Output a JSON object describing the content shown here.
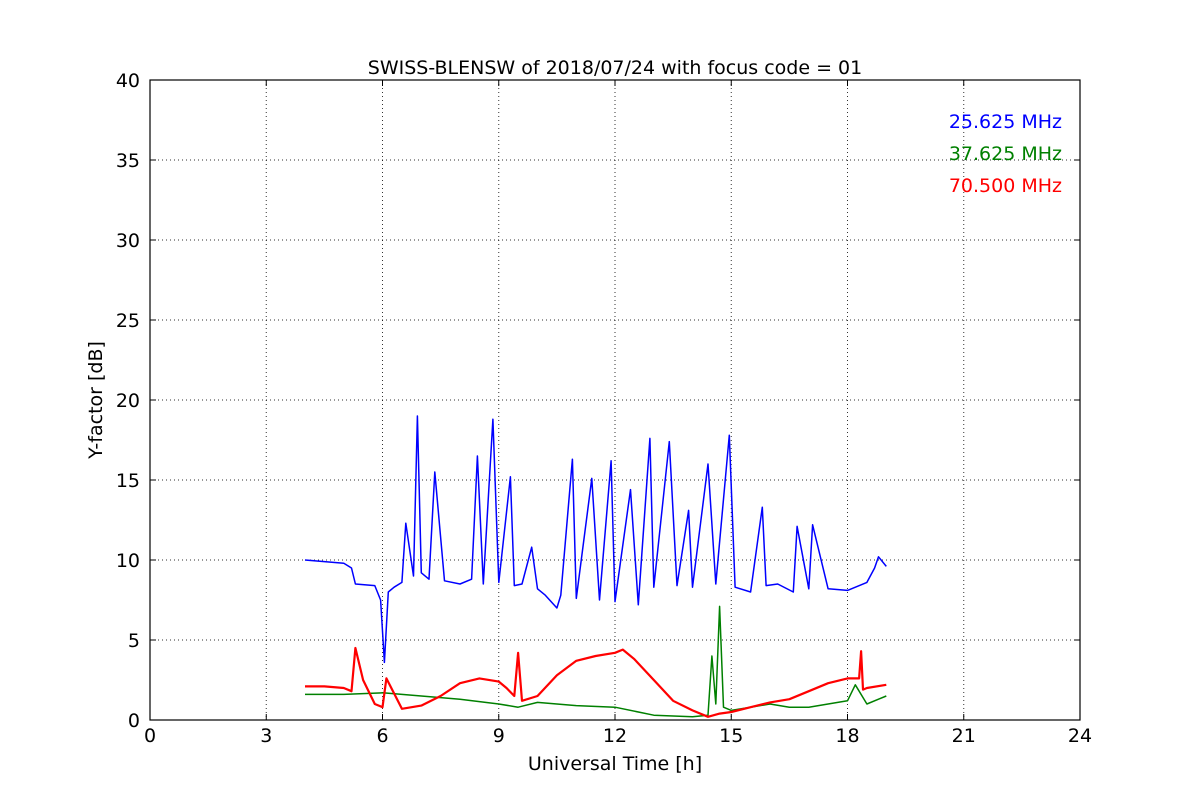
{
  "chart_data": {
    "type": "line",
    "title": "SWISS-BLENSW of 2018/07/24 with focus code = 01",
    "xlabel": "Universal Time [h]",
    "ylabel": "Y-factor [dB]",
    "xlim": [
      0,
      24
    ],
    "ylim": [
      0,
      40
    ],
    "xticks": [
      "0",
      "3",
      "6",
      "9",
      "12",
      "15",
      "18",
      "21",
      "24"
    ],
    "yticks": [
      "0",
      "5",
      "10",
      "15",
      "20",
      "25",
      "30",
      "35",
      "40"
    ],
    "grid": true,
    "legend_position": "top-right",
    "series": [
      {
        "name": "25.625 MHz",
        "color": "#0000ff",
        "x": [
          4.0,
          4.5,
          5.0,
          5.2,
          5.3,
          5.8,
          5.95,
          6.05,
          6.15,
          6.3,
          6.5,
          6.6,
          6.8,
          6.9,
          7.0,
          7.2,
          7.35,
          7.6,
          8.0,
          8.3,
          8.45,
          8.6,
          8.85,
          9.0,
          9.3,
          9.4,
          9.6,
          9.85,
          10.0,
          10.2,
          10.5,
          10.6,
          10.9,
          11.0,
          11.4,
          11.6,
          11.9,
          12.0,
          12.4,
          12.6,
          12.9,
          13.0,
          13.4,
          13.6,
          13.9,
          14.0,
          14.4,
          14.6,
          14.95,
          15.1,
          15.5,
          15.8,
          15.9,
          16.2,
          16.6,
          16.7,
          17.0,
          17.1,
          17.5,
          18.0,
          18.5,
          18.7,
          18.8,
          19.0
        ],
        "y": [
          10.0,
          9.9,
          9.8,
          9.5,
          8.5,
          8.4,
          7.5,
          3.6,
          8.0,
          8.3,
          8.6,
          12.3,
          9.0,
          19.0,
          9.2,
          8.8,
          15.5,
          8.7,
          8.5,
          8.8,
          16.5,
          8.5,
          18.8,
          8.6,
          15.2,
          8.4,
          8.5,
          10.8,
          8.2,
          7.8,
          7.0,
          7.8,
          16.3,
          7.6,
          15.1,
          7.5,
          16.2,
          7.4,
          14.4,
          7.2,
          17.6,
          8.3,
          17.4,
          8.4,
          13.1,
          8.3,
          16.0,
          8.5,
          17.8,
          8.3,
          8.0,
          13.3,
          8.4,
          8.5,
          8.0,
          12.1,
          8.2,
          12.2,
          8.2,
          8.1,
          8.6,
          9.5,
          10.2,
          9.6
        ]
      },
      {
        "name": "37.625 MHz",
        "color": "#008000",
        "x": [
          4.0,
          5.0,
          6.0,
          7.0,
          8.0,
          9.0,
          9.5,
          10.0,
          11.0,
          12.0,
          13.0,
          14.0,
          14.4,
          14.5,
          14.6,
          14.7,
          14.8,
          15.0,
          15.5,
          16.0,
          16.5,
          17.0,
          17.5,
          18.0,
          18.2,
          18.5,
          18.8,
          19.0
        ],
        "y": [
          1.6,
          1.6,
          1.7,
          1.5,
          1.3,
          1.0,
          0.8,
          1.1,
          0.9,
          0.8,
          0.3,
          0.2,
          0.3,
          4.0,
          1.0,
          7.1,
          0.8,
          0.6,
          0.8,
          1.0,
          0.8,
          0.8,
          1.0,
          1.2,
          2.2,
          1.0,
          1.3,
          1.5
        ]
      },
      {
        "name": "70.500 MHz",
        "color": "#ff0000",
        "x": [
          4.0,
          4.5,
          5.0,
          5.2,
          5.3,
          5.5,
          5.8,
          6.0,
          6.1,
          6.5,
          7.0,
          7.5,
          8.0,
          8.5,
          9.0,
          9.2,
          9.4,
          9.5,
          9.6,
          10.0,
          10.5,
          11.0,
          11.5,
          12.0,
          12.2,
          12.5,
          13.0,
          13.5,
          14.0,
          14.4,
          14.7,
          15.0,
          15.5,
          16.0,
          16.5,
          17.0,
          17.5,
          18.0,
          18.3,
          18.35,
          18.4,
          18.5,
          19.0
        ],
        "y": [
          2.1,
          2.1,
          2.0,
          1.8,
          4.5,
          2.5,
          1.0,
          0.8,
          2.6,
          0.7,
          0.9,
          1.5,
          2.3,
          2.6,
          2.4,
          2.0,
          1.5,
          4.2,
          1.2,
          1.5,
          2.8,
          3.7,
          4.0,
          4.2,
          4.4,
          3.8,
          2.5,
          1.2,
          0.6,
          0.2,
          0.4,
          0.5,
          0.8,
          1.1,
          1.3,
          1.8,
          2.3,
          2.6,
          2.6,
          4.3,
          1.9,
          2.0,
          2.2
        ]
      }
    ]
  }
}
